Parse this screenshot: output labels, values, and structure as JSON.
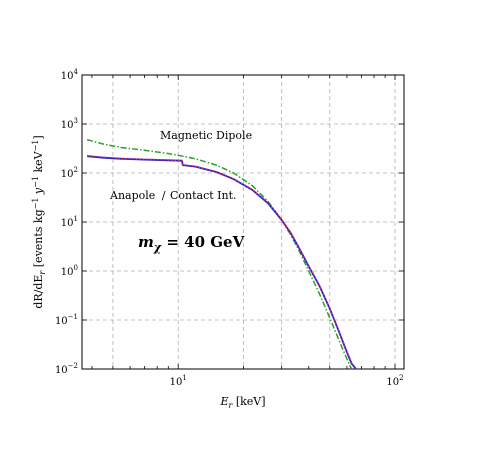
{
  "chart_data": {
    "type": "line",
    "x_scale": "log",
    "y_scale": "log",
    "xlim": [
      3.6,
      110
    ],
    "ylim": [
      0.01,
      10000
    ],
    "grid": true,
    "xlabel": "E_r [keV]",
    "xlabel_main": "E",
    "xlabel_sub": "r",
    "xlabel_unit": " [keV]",
    "ylabel": "dR/dE_r [events kg^-1 y^-1 keV^-1]",
    "ylabel_parts": {
      "a": "dR/dE",
      "a_sub": "r",
      "b": " [events kg",
      "b_sup": "−1",
      "c": " y",
      "c_sup": "−1",
      "d": " keV",
      "d_sup": "−1",
      "e": "]"
    },
    "x_ticks": [
      {
        "value": 10,
        "base": "10",
        "exp": "1"
      },
      {
        "value": 100,
        "base": "10",
        "exp": "2"
      }
    ],
    "y_ticks": [
      {
        "value": 10000,
        "base": "10",
        "exp": "4"
      },
      {
        "value": 1000,
        "base": "10",
        "exp": "3"
      },
      {
        "value": 100,
        "base": "10",
        "exp": "2"
      },
      {
        "value": 10,
        "base": "10",
        "exp": "1"
      },
      {
        "value": 1,
        "base": "10",
        "exp": "0"
      },
      {
        "value": 0.1,
        "base": "10",
        "exp": "−1"
      },
      {
        "value": 0.01,
        "base": "10",
        "exp": "−2"
      }
    ],
    "series": [
      {
        "name": "Magnetic Dipole",
        "color": "#2ca02c",
        "style": "dashdot",
        "x": [
          3.8,
          4.5,
          5.5,
          7,
          9,
          10.5,
          12,
          15,
          18,
          22,
          26,
          30,
          33,
          36,
          40,
          45,
          50,
          55,
          60,
          63
        ],
        "y": [
          480,
          390,
          330,
          290,
          250,
          220,
          195,
          145,
          100,
          55,
          26,
          11,
          5.5,
          2.7,
          1.0,
          0.33,
          0.11,
          0.04,
          0.016,
          0.01
        ]
      },
      {
        "name": "Anapole",
        "color": "#1f1fdd",
        "style": "solid",
        "x": [
          3.8,
          4.5,
          5.5,
          7,
          9,
          10.4,
          10.5,
          12,
          15,
          18,
          22,
          26,
          30,
          33,
          36,
          40,
          45,
          50,
          55,
          60,
          63,
          66
        ],
        "y": [
          220,
          205,
          195,
          188,
          182,
          178,
          145,
          135,
          105,
          75,
          45,
          24,
          11,
          6,
          3.0,
          1.25,
          0.48,
          0.17,
          0.06,
          0.022,
          0.013,
          0.01
        ]
      },
      {
        "name": "Contact Int.",
        "color": "#e0304a",
        "style": "dotted",
        "x": [
          3.8,
          4.5,
          5.5,
          7,
          9,
          10.4,
          10.5,
          12,
          15,
          18,
          22,
          26,
          30,
          33,
          36,
          40,
          45,
          50,
          55,
          60,
          63,
          66
        ],
        "y": [
          225,
          210,
          198,
          190,
          184,
          180,
          147,
          137,
          106,
          76,
          46,
          24.5,
          11.2,
          6.1,
          3.05,
          1.27,
          0.49,
          0.172,
          0.061,
          0.023,
          0.0135,
          0.0103
        ]
      }
    ],
    "annotations": [
      {
        "id": "magnetic",
        "text": "Magnetic Dipole",
        "color": "#2ca02c"
      },
      {
        "id": "anapole",
        "text": "Anapole",
        "color": "#1f1fdd"
      },
      {
        "id": "slash",
        "text": "/",
        "color": "#000000"
      },
      {
        "id": "contact",
        "text": "Contact Int.",
        "color": "#e0304a"
      },
      {
        "id": "mass",
        "text_main": "m",
        "text_sub": "χ",
        "text_rest": " = 40 GeV",
        "color": "#6b0000"
      }
    ]
  }
}
